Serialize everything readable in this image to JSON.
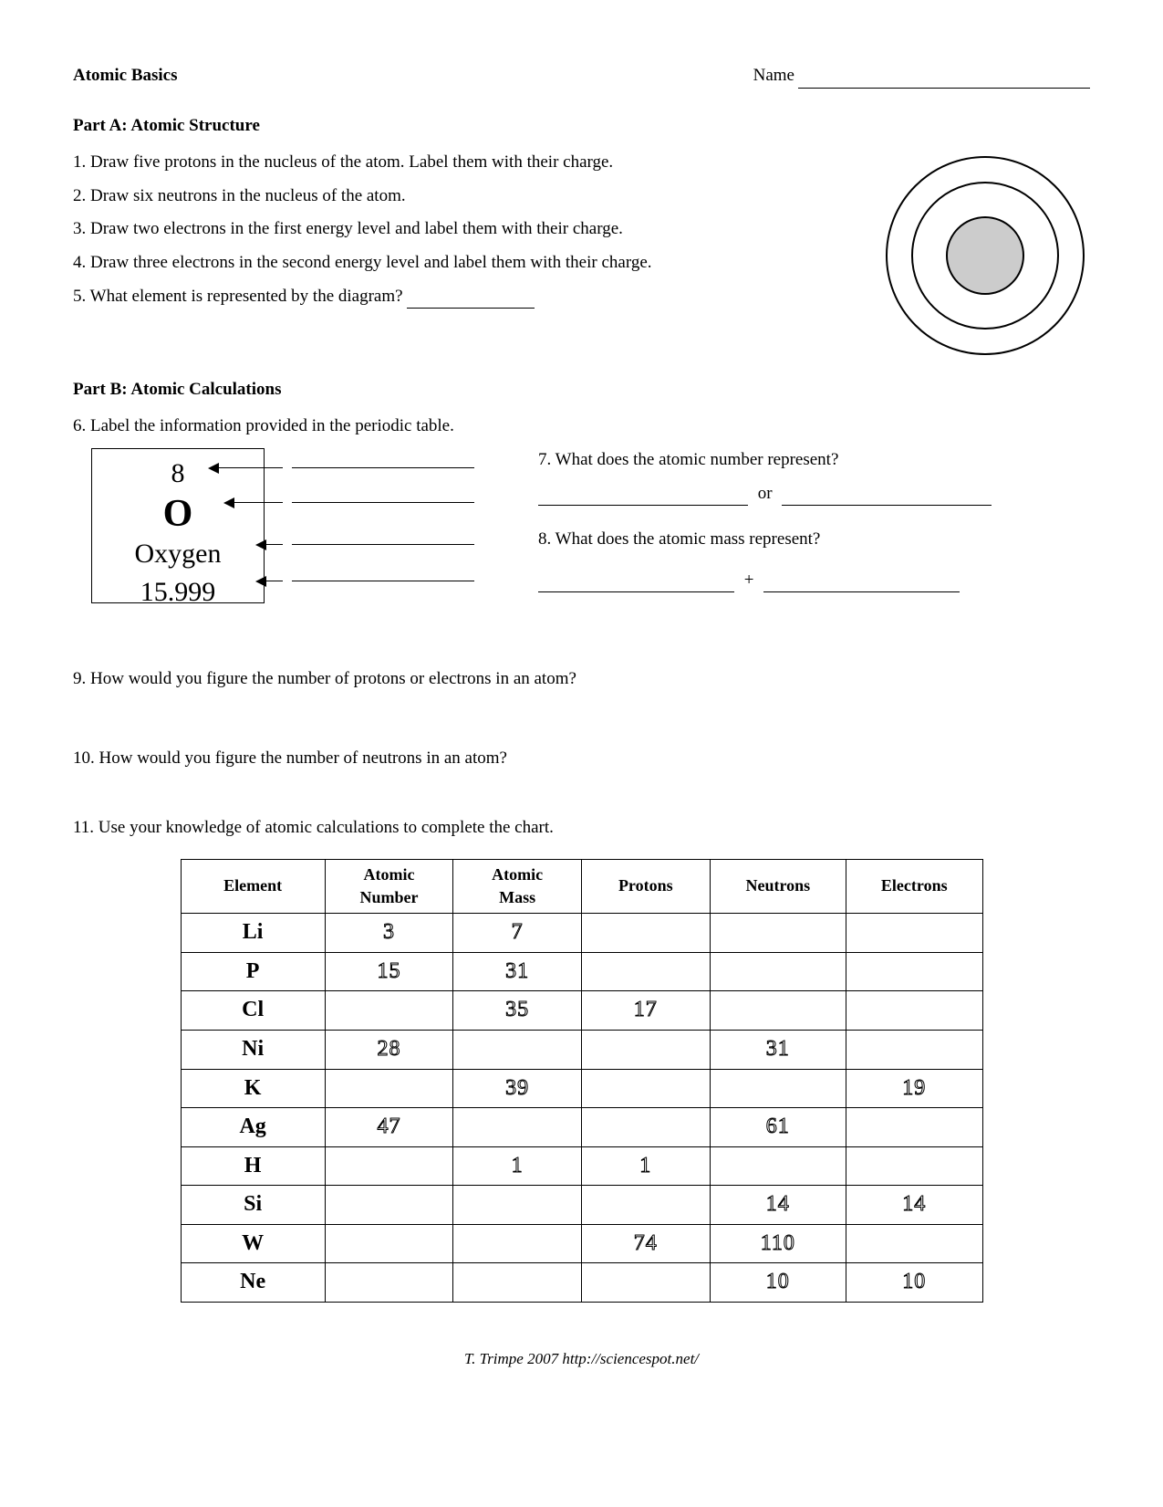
{
  "header": {
    "title": "Atomic Basics",
    "name_label": "Name"
  },
  "partA": {
    "title": "Part A:  Atomic Structure",
    "items": [
      "1.  Draw five protons in the nucleus of the atom.  Label them with their charge.",
      "2.  Draw six neutrons in the nucleus of the atom.",
      "3.  Draw two electrons in the first energy level and label them with their charge.",
      "4. Draw three electrons in the second energy level and label them with their charge.",
      "5.  What element is represented by the diagram?"
    ],
    "diagram": {
      "outer_r": 108,
      "mid_r": 80,
      "inner_r": 42,
      "stroke": "#000000",
      "fill_inner": "#cccccc",
      "bg": "#ffffff",
      "stroke_width": 2
    }
  },
  "partB": {
    "title": "Part B:  Atomic Calculations",
    "q6": "6.  Label the information provided in the periodic table.",
    "element_card": {
      "number": "8",
      "symbol": "O",
      "name": "Oxygen",
      "mass": "15.999"
    },
    "q7": "7. What does the atomic number represent?",
    "q7_sep": "or",
    "q8": "8. What does the atomic mass represent?",
    "q8_sep": "+",
    "q9": "9. How would you figure the number of protons or electrons in an atom?",
    "q10": "10. How would you figure the number of neutrons in an atom?",
    "q11": "11.  Use your knowledge of atomic calculations to complete the chart."
  },
  "chart": {
    "columns": [
      "Element",
      "Atomic Number",
      "Atomic Mass",
      "Protons",
      "Neutrons",
      "Electrons"
    ],
    "col_widths_pct": [
      18,
      16,
      16,
      16,
      17,
      17
    ],
    "rows": [
      {
        "element": "Li",
        "cells": [
          "3",
          "7",
          "",
          "",
          ""
        ]
      },
      {
        "element": "P",
        "cells": [
          "15",
          "31",
          "",
          "",
          ""
        ]
      },
      {
        "element": "Cl",
        "cells": [
          "",
          "35",
          "17",
          "",
          ""
        ]
      },
      {
        "element": "Ni",
        "cells": [
          "28",
          "",
          "",
          "31",
          ""
        ]
      },
      {
        "element": "K",
        "cells": [
          "",
          "39",
          "",
          "",
          "19"
        ]
      },
      {
        "element": "Ag",
        "cells": [
          "47",
          "",
          "",
          "61",
          ""
        ]
      },
      {
        "element": "H",
        "cells": [
          "",
          "1",
          "1",
          "",
          ""
        ]
      },
      {
        "element": "Si",
        "cells": [
          "",
          "",
          "",
          "14",
          "14"
        ]
      },
      {
        "element": "W",
        "cells": [
          "",
          "",
          "74",
          "110",
          ""
        ]
      },
      {
        "element": "Ne",
        "cells": [
          "",
          "",
          "",
          "10",
          "10"
        ]
      }
    ],
    "border_color": "#000000",
    "outline_text_stroke": "#000000",
    "element_font_weight": 900
  },
  "footer": "T. Trimpe 2007     http://sciencespot.net/"
}
